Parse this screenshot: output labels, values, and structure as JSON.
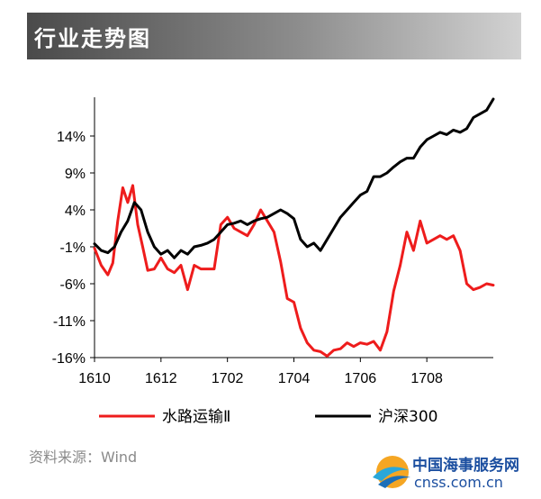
{
  "header": {
    "title": "行业走势图"
  },
  "source": "资料来源：Wind",
  "logo": {
    "name": "中国海事服务网",
    "url": "cnss.com.cn"
  },
  "colors": {
    "red_series": "#ee1c1c",
    "black_series": "#000000",
    "title_bar": "#6a6a6a"
  },
  "chart_data": {
    "type": "line",
    "title": "",
    "xlabel": "",
    "ylabel": "",
    "x_ticks": [
      "1610",
      "1612",
      "1702",
      "1704",
      "1706",
      "1708"
    ],
    "y_ticks": [
      "14%",
      "9%",
      "4%",
      "-1%",
      "-6%",
      "-11%",
      "-16%"
    ],
    "ylim": [
      -16,
      19
    ],
    "xlim": [
      0,
      12
    ],
    "grid": false,
    "legend": "bottom",
    "series": [
      {
        "name": "水路运输Ⅱ",
        "color": "#ee1c1c",
        "x": [
          0,
          0.2,
          0.4,
          0.55,
          0.7,
          0.85,
          1.0,
          1.15,
          1.3,
          1.45,
          1.6,
          1.8,
          2.0,
          2.2,
          2.4,
          2.6,
          2.8,
          3.0,
          3.2,
          3.4,
          3.6,
          3.8,
          4.0,
          4.2,
          4.4,
          4.6,
          4.8,
          5.0,
          5.2,
          5.4,
          5.6,
          5.8,
          6.0,
          6.2,
          6.4,
          6.6,
          6.8,
          7.0,
          7.2,
          7.4,
          7.6,
          7.8,
          8.0,
          8.2,
          8.4,
          8.6,
          8.8,
          9.0,
          9.2,
          9.4,
          9.6,
          9.8,
          10.0,
          10.2,
          10.4,
          10.6,
          10.8,
          11.0,
          11.2,
          11.4,
          11.6,
          11.8,
          12.0
        ],
        "y": [
          -1.2,
          -3.5,
          -4.8,
          -3.2,
          2.5,
          7.0,
          5.0,
          7.3,
          2.0,
          -1.0,
          -4.2,
          -4.0,
          -2.5,
          -4.0,
          -4.5,
          -3.5,
          -6.8,
          -3.5,
          -4.0,
          -4.0,
          -4.0,
          2.0,
          3.0,
          1.5,
          1.0,
          0.5,
          2.0,
          4.0,
          2.5,
          1.0,
          -3.0,
          -8.0,
          -8.5,
          -12.0,
          -14.0,
          -15.0,
          -15.2,
          -15.8,
          -15.0,
          -14.8,
          -14.0,
          -14.5,
          -14.0,
          -14.2,
          -13.8,
          -15.0,
          -12.5,
          -7.0,
          -3.5,
          1.0,
          -1.5,
          2.5,
          -0.5,
          0.0,
          0.5,
          0.0,
          0.5,
          -1.5,
          -6.0,
          -6.8,
          -6.5,
          -6.0,
          -6.2
        ]
      },
      {
        "name": "沪深300",
        "color": "#000000",
        "x": [
          0,
          0.2,
          0.4,
          0.6,
          0.8,
          1.0,
          1.2,
          1.4,
          1.6,
          1.8,
          2.0,
          2.2,
          2.4,
          2.6,
          2.8,
          3.0,
          3.2,
          3.4,
          3.6,
          3.8,
          4.0,
          4.2,
          4.4,
          4.6,
          4.8,
          5.0,
          5.2,
          5.4,
          5.6,
          5.8,
          6.0,
          6.2,
          6.4,
          6.6,
          6.8,
          7.0,
          7.2,
          7.4,
          7.6,
          7.8,
          8.0,
          8.2,
          8.4,
          8.6,
          8.8,
          9.0,
          9.2,
          9.4,
          9.6,
          9.8,
          10.0,
          10.2,
          10.4,
          10.6,
          10.8,
          11.0,
          11.2,
          11.4,
          11.6,
          11.8,
          12.0
        ],
        "y": [
          -0.6,
          -1.5,
          -1.8,
          -1.0,
          1.0,
          2.5,
          5.0,
          4.0,
          1.0,
          -1.0,
          -2.0,
          -1.5,
          -2.5,
          -1.5,
          -2.0,
          -1.0,
          -0.8,
          -0.5,
          0.0,
          1.0,
          2.0,
          2.2,
          2.5,
          2.0,
          2.5,
          2.8,
          3.0,
          3.5,
          4.0,
          3.5,
          2.8,
          0.0,
          -1.0,
          -0.5,
          -1.5,
          0.0,
          1.5,
          3.0,
          4.0,
          5.0,
          6.0,
          6.5,
          8.5,
          8.5,
          9.0,
          9.8,
          10.5,
          11.0,
          11.0,
          12.5,
          13.5,
          14.0,
          14.5,
          14.2,
          14.8,
          14.5,
          15.0,
          16.5,
          17.0,
          17.5,
          19.0
        ]
      }
    ]
  }
}
